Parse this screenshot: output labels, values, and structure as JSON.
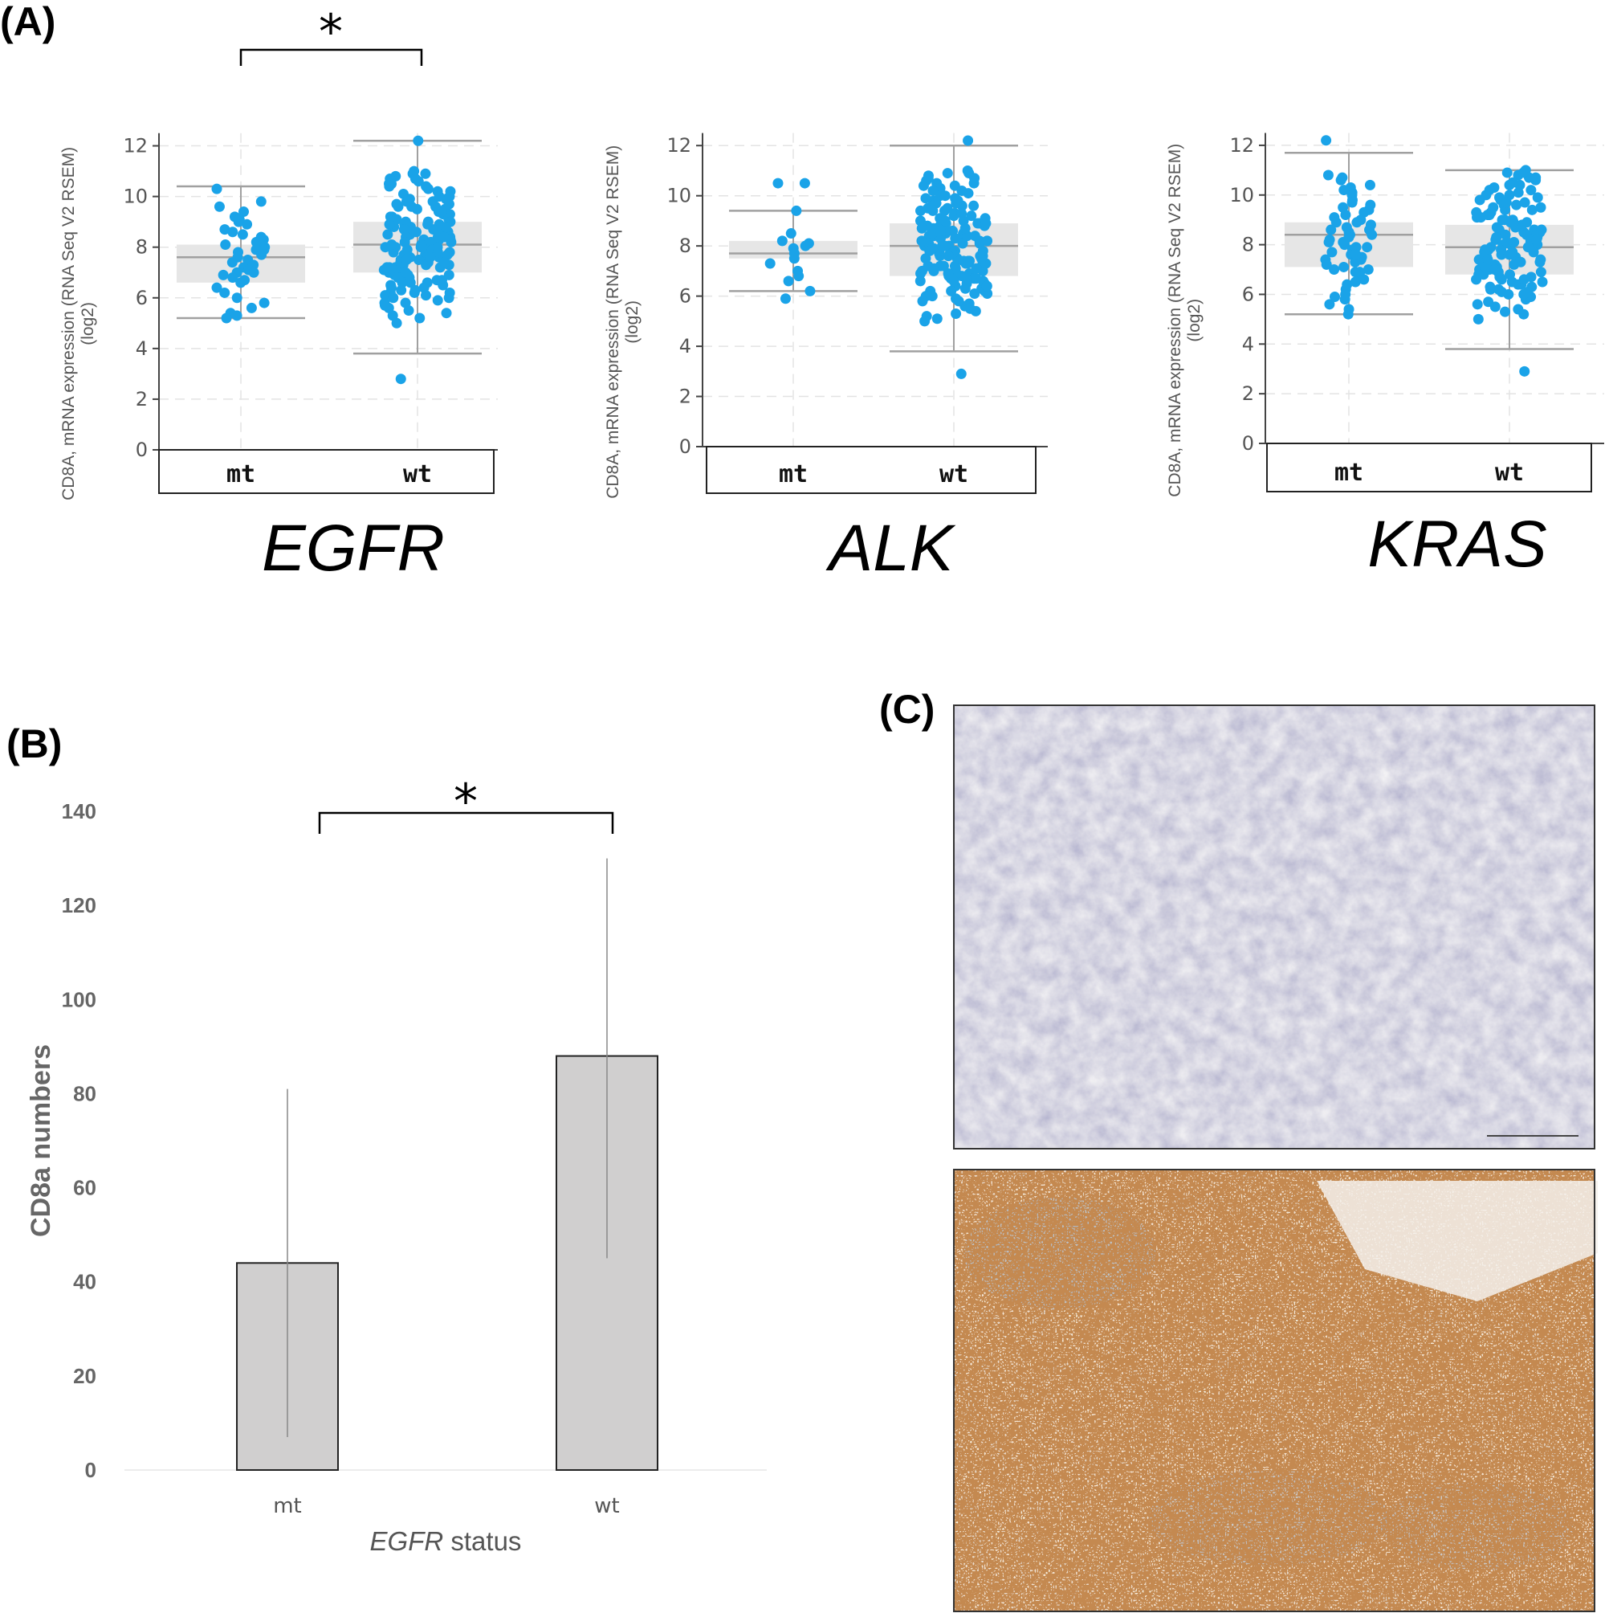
{
  "figure": {
    "panel_a_label": "(A)",
    "panel_b_label": "(B)",
    "panel_c_label": "(C)"
  },
  "chart_data": [
    {
      "type": "scatter",
      "gene": "EGFR",
      "ylabel": "CD8A, mRNA expression (RNA Seq V2 RSEM) (log2)",
      "ylim": [
        0,
        13
      ],
      "yticks": [
        0,
        2,
        4,
        6,
        8,
        10,
        12
      ],
      "categories": [
        "mt",
        "wt"
      ],
      "significance": "*",
      "boxes": [
        {
          "name": "mt",
          "q1": 6.6,
          "median": 7.6,
          "q3": 8.1,
          "whisker_low": 5.2,
          "whisker_high": 10.4
        },
        {
          "name": "wt",
          "q1": 7.0,
          "median": 8.1,
          "q3": 9.0,
          "whisker_low": 3.8,
          "whisker_high": 12.2
        }
      ],
      "points": [
        {
          "category": "mt",
          "values": [
            10.3,
            9.8,
            9.6,
            9.4,
            9.2,
            9.0,
            8.9,
            8.7,
            8.6,
            8.5,
            8.3,
            8.2,
            8.1,
            8.0,
            7.9,
            7.8,
            7.7,
            7.6,
            7.5,
            7.4,
            7.3,
            7.2,
            7.1,
            7.0,
            6.9,
            6.8,
            6.6,
            6.4,
            6.2,
            6.0,
            5.8,
            5.6,
            5.4,
            5.3,
            5.2,
            6.7,
            7.9,
            8.4,
            9.1,
            7.0
          ]
        },
        {
          "category": "wt",
          "values": [
            12.2,
            11.0,
            10.9,
            10.8,
            10.7,
            10.6,
            10.5,
            10.4,
            10.3,
            10.2,
            10.1,
            10.0,
            9.9,
            9.8,
            9.7,
            9.6,
            9.5,
            9.4,
            9.3,
            9.2,
            9.1,
            9.0,
            8.9,
            8.8,
            8.7,
            8.6,
            8.5,
            8.4,
            8.3,
            8.2,
            8.1,
            8.0,
            7.9,
            7.8,
            7.7,
            7.6,
            7.5,
            7.4,
            7.3,
            7.2,
            7.1,
            7.0,
            6.9,
            6.8,
            6.7,
            6.6,
            6.5,
            6.4,
            6.3,
            6.2,
            6.1,
            6.0,
            5.8,
            5.6,
            5.4,
            5.2,
            5.0,
            2.8,
            9.6,
            9.2,
            8.8,
            8.4,
            8.0,
            7.6,
            7.2,
            6.8,
            10.4,
            9.9,
            9.4,
            8.9,
            8.5,
            8.2,
            7.9,
            7.5,
            7.0,
            6.6,
            6.2,
            5.9,
            10.7,
            9.7,
            9.0,
            8.6,
            8.1,
            7.7,
            7.3,
            6.9,
            6.4,
            5.7,
            10.2,
            9.3,
            8.7,
            8.3,
            7.8,
            7.4,
            7.1,
            6.7,
            6.1,
            5.5,
            9.8,
            8.9,
            8.4,
            8.0,
            7.6,
            7.2,
            6.8,
            6.3,
            10.9,
            9.5,
            9.0,
            8.5,
            8.1,
            7.7,
            7.3,
            6.9,
            6.5,
            6.0,
            5.3,
            10.0,
            9.1,
            8.6,
            8.2,
            7.8,
            7.4,
            7.0,
            6.6,
            6.2,
            5.8,
            9.6,
            8.8,
            8.3,
            7.9,
            7.5,
            7.1,
            6.7,
            10.5,
            9.4,
            8.9,
            8.4,
            8.0,
            7.6,
            7.2
          ]
        }
      ]
    },
    {
      "type": "scatter",
      "gene": "ALK",
      "ylabel": "CD8A, mRNA expression (RNA Seq V2 RSEM) (log2)",
      "ylim": [
        0,
        13
      ],
      "yticks": [
        0,
        2,
        4,
        6,
        8,
        10,
        12
      ],
      "categories": [
        "mt",
        "wt"
      ],
      "boxes": [
        {
          "name": "mt",
          "q1": 7.5,
          "median": 7.7,
          "q3": 8.2,
          "whisker_low": 6.2,
          "whisker_high": 9.4
        },
        {
          "name": "wt",
          "q1": 6.8,
          "median": 8.0,
          "q3": 8.9,
          "whisker_low": 3.8,
          "whisker_high": 12.0
        }
      ],
      "points": [
        {
          "category": "mt",
          "values": [
            10.5,
            10.5,
            9.4,
            8.5,
            8.2,
            8.1,
            8.0,
            7.9,
            7.7,
            7.5,
            7.3,
            7.0,
            6.8,
            6.6,
            6.2,
            5.9
          ]
        },
        {
          "category": "wt",
          "values": [
            12.2,
            11.0,
            10.9,
            10.8,
            10.7,
            10.6,
            10.5,
            10.4,
            10.3,
            10.2,
            10.1,
            10.0,
            9.9,
            9.8,
            9.7,
            9.6,
            9.5,
            9.4,
            9.3,
            9.2,
            9.1,
            9.0,
            8.9,
            8.8,
            8.7,
            8.6,
            8.5,
            8.4,
            8.3,
            8.2,
            8.1,
            8.0,
            7.9,
            7.8,
            7.7,
            7.6,
            7.5,
            7.4,
            7.3,
            7.2,
            7.1,
            7.0,
            6.9,
            6.8,
            6.7,
            6.6,
            6.5,
            6.4,
            6.3,
            6.2,
            6.1,
            6.0,
            5.8,
            5.6,
            5.4,
            5.2,
            5.0,
            2.9,
            9.6,
            9.2,
            8.8,
            8.4,
            8.0,
            7.6,
            7.2,
            6.8,
            10.4,
            9.9,
            9.4,
            8.9,
            8.5,
            8.2,
            7.9,
            7.5,
            7.0,
            6.6,
            6.2,
            5.9,
            10.7,
            9.7,
            9.0,
            8.6,
            8.1,
            7.7,
            7.3,
            6.9,
            6.4,
            5.7,
            10.2,
            9.3,
            8.7,
            8.3,
            7.8,
            7.4,
            7.1,
            6.7,
            6.1,
            5.5,
            9.8,
            8.9,
            8.4,
            8.0,
            7.6,
            7.2,
            6.8,
            6.3,
            10.9,
            9.5,
            9.0,
            8.5,
            8.1,
            7.7,
            7.3,
            6.9,
            6.5,
            6.0,
            5.3,
            10.0,
            9.1,
            8.6,
            8.2,
            7.8,
            7.4,
            7.0,
            6.6,
            6.2,
            5.8,
            9.6,
            8.8,
            8.3,
            7.9,
            7.5,
            7.1,
            6.7,
            10.5,
            9.4,
            8.9,
            8.4,
            8.0,
            7.6,
            7.2,
            8.7,
            8.2,
            7.8,
            7.3,
            6.9,
            6.4,
            5.1
          ]
        }
      ]
    },
    {
      "type": "scatter",
      "gene": "KRAS",
      "ylabel": "CD8A, mRNA expression (RNA Seq V2 RSEM) (log2)",
      "ylim": [
        0,
        13
      ],
      "yticks": [
        0,
        2,
        4,
        6,
        8,
        10,
        12
      ],
      "categories": [
        "mt",
        "wt"
      ],
      "boxes": [
        {
          "name": "mt",
          "q1": 7.1,
          "median": 8.4,
          "q3": 8.9,
          "whisker_low": 5.2,
          "whisker_high": 11.7
        },
        {
          "name": "wt",
          "q1": 6.8,
          "median": 7.9,
          "q3": 8.8,
          "whisker_low": 3.8,
          "whisker_high": 11.0
        }
      ],
      "points": [
        {
          "category": "mt",
          "values": [
            12.2,
            10.8,
            10.7,
            10.6,
            10.4,
            10.3,
            10.1,
            10.0,
            9.8,
            9.7,
            9.5,
            9.4,
            9.3,
            9.1,
            9.0,
            8.9,
            8.8,
            8.7,
            8.6,
            8.5,
            8.4,
            8.3,
            8.2,
            8.1,
            8.0,
            7.9,
            7.8,
            7.7,
            7.6,
            7.5,
            7.4,
            7.3,
            7.2,
            7.1,
            7.0,
            6.9,
            6.8,
            6.6,
            6.4,
            6.2,
            6.0,
            5.8,
            5.6,
            5.4,
            5.2,
            9.6,
            8.9,
            8.4,
            7.9,
            7.4,
            6.9,
            10.2,
            9.2,
            8.6,
            8.1,
            7.6,
            7.0,
            6.5,
            5.9
          ]
        },
        {
          "category": "wt",
          "values": [
            11.0,
            10.9,
            10.8,
            10.7,
            10.6,
            10.5,
            10.4,
            10.3,
            10.2,
            10.1,
            10.0,
            9.9,
            9.8,
            9.7,
            9.6,
            9.5,
            9.4,
            9.3,
            9.2,
            9.1,
            9.0,
            8.9,
            8.8,
            8.7,
            8.6,
            8.5,
            8.4,
            8.3,
            8.2,
            8.1,
            8.0,
            7.9,
            7.8,
            7.7,
            7.6,
            7.5,
            7.4,
            7.3,
            7.2,
            7.1,
            7.0,
            6.9,
            6.8,
            6.7,
            6.6,
            6.5,
            6.4,
            6.3,
            6.2,
            6.1,
            6.0,
            5.8,
            5.6,
            5.4,
            5.2,
            5.0,
            2.9,
            9.6,
            9.2,
            8.8,
            8.4,
            8.0,
            7.6,
            7.2,
            6.8,
            10.4,
            9.9,
            9.4,
            8.9,
            8.5,
            8.2,
            7.9,
            7.5,
            7.0,
            6.6,
            6.2,
            5.9,
            10.7,
            9.7,
            9.0,
            8.6,
            8.1,
            7.7,
            7.3,
            6.9,
            6.4,
            5.7,
            10.2,
            9.3,
            8.7,
            8.3,
            7.8,
            7.4,
            7.1,
            6.7,
            6.1,
            5.5,
            9.8,
            8.9,
            8.4,
            8.0,
            7.6,
            7.2,
            6.8,
            6.3,
            10.9,
            9.5,
            9.0,
            8.5,
            8.1,
            7.7,
            7.3,
            6.9,
            6.5,
            6.0,
            5.3,
            10.0,
            9.1,
            8.6,
            8.2,
            7.8,
            7.4,
            7.0,
            6.6
          ]
        }
      ]
    },
    {
      "type": "bar",
      "categories": [
        "mt",
        "wt"
      ],
      "values": [
        44,
        88
      ],
      "error_low": [
        7,
        45
      ],
      "error_high": [
        81,
        130
      ],
      "xlabel_italic": "EGFR",
      "xlabel_rest": " status",
      "ylabel": "CD8a numbers",
      "ylim": [
        0,
        140
      ],
      "yticks": [
        0,
        20,
        40,
        60,
        80,
        100,
        120,
        140
      ],
      "significance": "*",
      "bar_color": "#d0cfcf"
    }
  ],
  "panel_c": {
    "image_top": "CD8 immunohistochemistry (negative)",
    "image_bottom": "CD8 immunohistochemistry (positive)"
  },
  "colors": {
    "point": "#1aa3e8",
    "box_fill": "#e6e6e6",
    "box_line": "#a0a0a0",
    "bar_fill": "#d0cfcf"
  }
}
